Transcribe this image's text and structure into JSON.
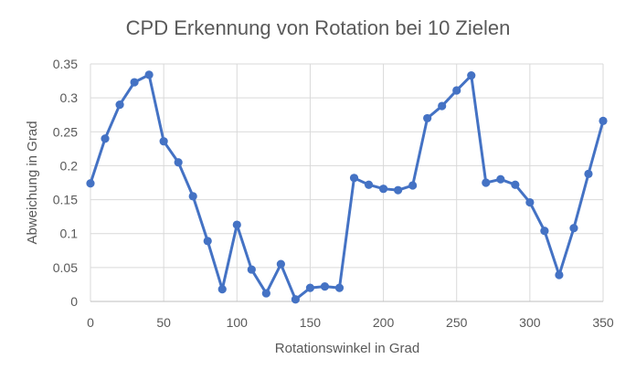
{
  "chart_data": {
    "type": "line",
    "title": "CPD Erkennung von Rotation bei 10 Zielen",
    "xlabel": "Rotationswinkel in Grad",
    "ylabel": "Abweichung in Grad",
    "xlim": [
      0,
      350
    ],
    "ylim": [
      0,
      0.35
    ],
    "x_ticks": [
      0,
      50,
      100,
      150,
      200,
      250,
      300,
      350
    ],
    "y_ticks": [
      0,
      0.05,
      0.1,
      0.15,
      0.2,
      0.25,
      0.3,
      0.35
    ],
    "x_tick_labels": [
      "0",
      "50",
      "100",
      "150",
      "200",
      "250",
      "300",
      "350"
    ],
    "y_tick_labels": [
      "0",
      "0.05",
      "0.1",
      "0.15",
      "0.2",
      "0.25",
      "0.3",
      "0.35"
    ],
    "grid": true,
    "legend": "none",
    "series": [
      {
        "color": "#4472c4",
        "marker": "circle",
        "x": [
          0,
          10,
          20,
          30,
          40,
          50,
          60,
          70,
          80,
          90,
          100,
          110,
          120,
          130,
          140,
          150,
          160,
          170,
          180,
          190,
          200,
          210,
          220,
          230,
          240,
          250,
          260,
          270,
          280,
          290,
          300,
          310,
          320,
          330,
          340,
          350
        ],
        "values": [
          0.174,
          0.24,
          0.29,
          0.323,
          0.334,
          0.236,
          0.205,
          0.155,
          0.089,
          0.018,
          0.113,
          0.047,
          0.012,
          0.055,
          0.003,
          0.02,
          0.022,
          0.02,
          0.182,
          0.172,
          0.166,
          0.164,
          0.171,
          0.27,
          0.288,
          0.311,
          0.333,
          0.175,
          0.18,
          0.172,
          0.146,
          0.104,
          0.039,
          0.108,
          0.188,
          0.266
        ]
      }
    ]
  }
}
